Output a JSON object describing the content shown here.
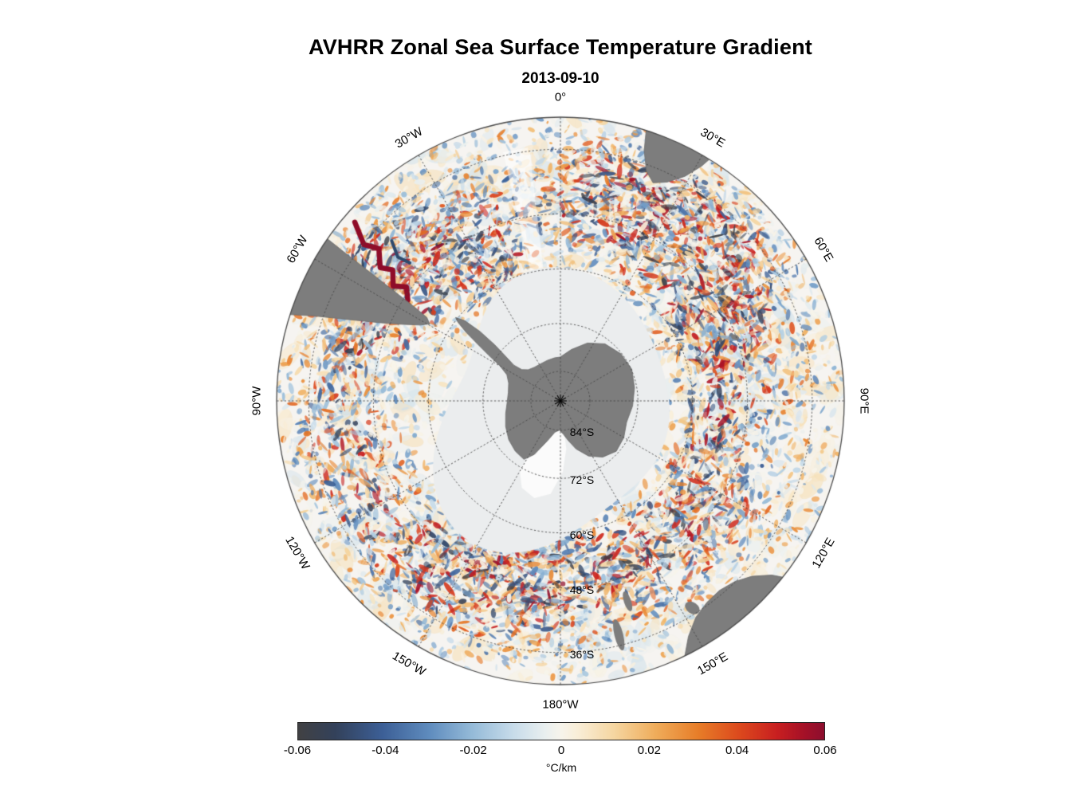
{
  "figure": {
    "title": "AVHRR Zonal Sea Surface Temperature Gradient",
    "date": "2013-09-10"
  },
  "map": {
    "meridian_labels": [
      {
        "text": "0°",
        "angle": 0
      },
      {
        "text": "30°E",
        "angle": 30
      },
      {
        "text": "60°E",
        "angle": 60
      },
      {
        "text": "90°E",
        "angle": 90
      },
      {
        "text": "120°E",
        "angle": 120
      },
      {
        "text": "150°E",
        "angle": 150
      },
      {
        "text": "180°W",
        "angle": 180
      },
      {
        "text": "150°W",
        "angle": 210
      },
      {
        "text": "120°W",
        "angle": 240
      },
      {
        "text": "90°W",
        "angle": 270
      },
      {
        "text": "60°W",
        "angle": 300
      },
      {
        "text": "30°W",
        "angle": 330
      }
    ],
    "parallel_labels": [
      {
        "text": "84°S",
        "rf": 0.104
      },
      {
        "text": "72°S",
        "rf": 0.273
      },
      {
        "text": "60°S",
        "rf": 0.465
      },
      {
        "text": "48°S",
        "rf": 0.659
      },
      {
        "text": "36°S",
        "rf": 0.887
      }
    ],
    "pole_marker": "asterisk",
    "colors": {
      "land": "#7d7d7d",
      "land_edge": "#6b6b6b",
      "ice": "#ebedee",
      "ice_bright": "#fbfbfb",
      "ocean": "#f6f4f1",
      "grid": "#4a4a4a",
      "border": "#4a4a4a"
    }
  },
  "colorbar": {
    "min": -0.06,
    "max": 0.06,
    "ticks": [
      "-0.06",
      "-0.04",
      "-0.02",
      "0",
      "0.02",
      "0.04",
      "0.06"
    ],
    "label": "°C/km",
    "stops": [
      {
        "t": 0.0,
        "c": "#414143"
      },
      {
        "t": 0.07,
        "c": "#33415a"
      },
      {
        "t": 0.16,
        "c": "#3c5f96"
      },
      {
        "t": 0.25,
        "c": "#5f8cbe"
      },
      {
        "t": 0.33,
        "c": "#94bad8"
      },
      {
        "t": 0.41,
        "c": "#c8dcea"
      },
      {
        "t": 0.47,
        "c": "#e9efef"
      },
      {
        "t": 0.5,
        "c": "#f7f4eb"
      },
      {
        "t": 0.53,
        "c": "#f9eed8"
      },
      {
        "t": 0.6,
        "c": "#f5d6a1"
      },
      {
        "t": 0.68,
        "c": "#efac5a"
      },
      {
        "t": 0.76,
        "c": "#e77d28"
      },
      {
        "t": 0.84,
        "c": "#dc481d"
      },
      {
        "t": 0.91,
        "c": "#c81f20"
      },
      {
        "t": 0.96,
        "c": "#a61127"
      },
      {
        "t": 1.0,
        "c": "#8c0e2e"
      }
    ]
  },
  "chart_data": {
    "type": "heatmap",
    "title": "AVHRR Zonal Sea Surface Temperature Gradient",
    "date": "2013-09-10",
    "projection": "south polar stereographic, Antarctica centered, 0° longitude at top",
    "variable": "zonal sea surface temperature gradient",
    "units": "°C/km",
    "value_range": [
      -0.06,
      0.06
    ],
    "colorbar_ticks": [
      -0.06,
      -0.04,
      -0.02,
      0,
      0.02,
      0.04,
      0.06
    ],
    "longitude_gridlines": [
      "0°",
      "30°E",
      "60°E",
      "90°E",
      "120°E",
      "150°E",
      "180°W",
      "150°W",
      "120°W",
      "90°W",
      "60°W",
      "30°W"
    ],
    "latitude_gridlines": [
      "84°S",
      "72°S",
      "60°S",
      "48°S",
      "36°S"
    ],
    "grid": "dotted graticule, solid outer circle",
    "legend_position": "horizontal colorbar centered at bottom",
    "notable_features": [
      "speckled positive (red/orange) and negative (blue/navy) gradient filaments throughout the Southern Ocean",
      "strong dark-red frontal meander streak east of southern South America",
      "dense red/blue frontal activity southeast of Africa (Agulhas region) and along the East Antarctic coast",
      "dense frontal band south of New Zealand near 60°S",
      "gray land: Antarctica with peninsula, South America, southern Africa, Australia with Tasmania, New Zealand",
      "pale gray sea-ice / no-data zone surrounding Antarctica with bright white Ross Sea sector"
    ]
  }
}
